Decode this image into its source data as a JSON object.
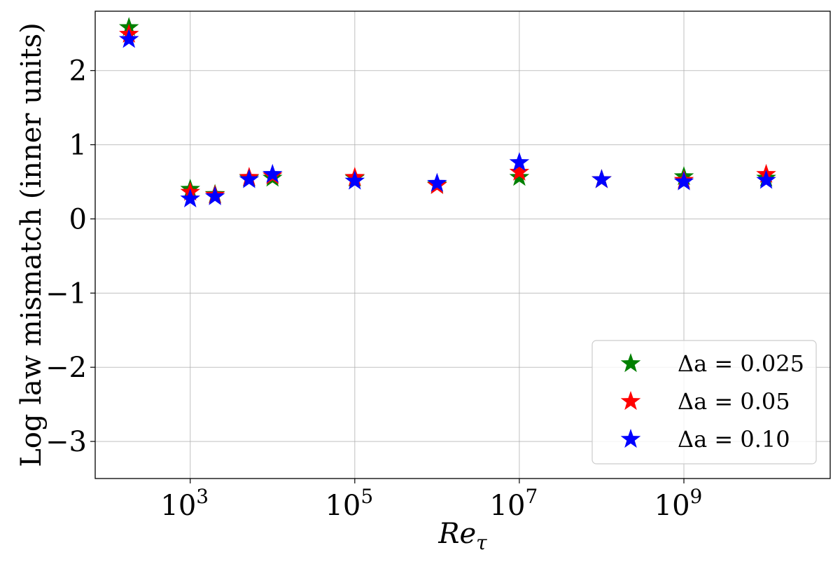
{
  "chart_data": {
    "type": "scatter",
    "xlabel": "Re_τ",
    "ylabel": "Log law mismatch (inner units)",
    "xscale": "log",
    "xlim": [
      70,
      60000000000
    ],
    "ylim": [
      -3.5,
      2.8
    ],
    "grid": true,
    "legend_position": "bottom-right",
    "marker": "star",
    "x_ticks": [
      {
        "value": 1000,
        "base": "10",
        "exp": "3"
      },
      {
        "value": 100000,
        "base": "10",
        "exp": "5"
      },
      {
        "value": 10000000,
        "base": "10",
        "exp": "7"
      },
      {
        "value": 1000000000,
        "base": "10",
        "exp": "9"
      }
    ],
    "y_ticks": [
      {
        "value": 2,
        "label": "2"
      },
      {
        "value": 1,
        "label": "1"
      },
      {
        "value": 0,
        "label": "0"
      },
      {
        "value": -1,
        "label": "−1"
      },
      {
        "value": -2,
        "label": "−2"
      },
      {
        "value": -3,
        "label": "−3"
      }
    ],
    "x": [
      180,
      1000,
      2000,
      5200,
      10000,
      100000,
      1000000,
      10000000,
      100000000,
      1000000000,
      10000000000
    ],
    "series": [
      {
        "name": "Δa = 0.025",
        "color": "#008000",
        "values": [
          2.58,
          0.4,
          0.33,
          0.55,
          0.55,
          0.55,
          0.46,
          0.56,
          0.53,
          0.57,
          0.55
        ]
      },
      {
        "name": "Δa = 0.05",
        "color": "#ff0000",
        "values": [
          2.49,
          0.36,
          0.32,
          0.56,
          0.58,
          0.56,
          0.45,
          0.63,
          0.53,
          0.52,
          0.6
        ]
      },
      {
        "name": "Δa = 0.10",
        "color": "#0000ff",
        "values": [
          2.42,
          0.27,
          0.3,
          0.53,
          0.6,
          0.51,
          0.48,
          0.76,
          0.53,
          0.5,
          0.52
        ]
      }
    ]
  }
}
